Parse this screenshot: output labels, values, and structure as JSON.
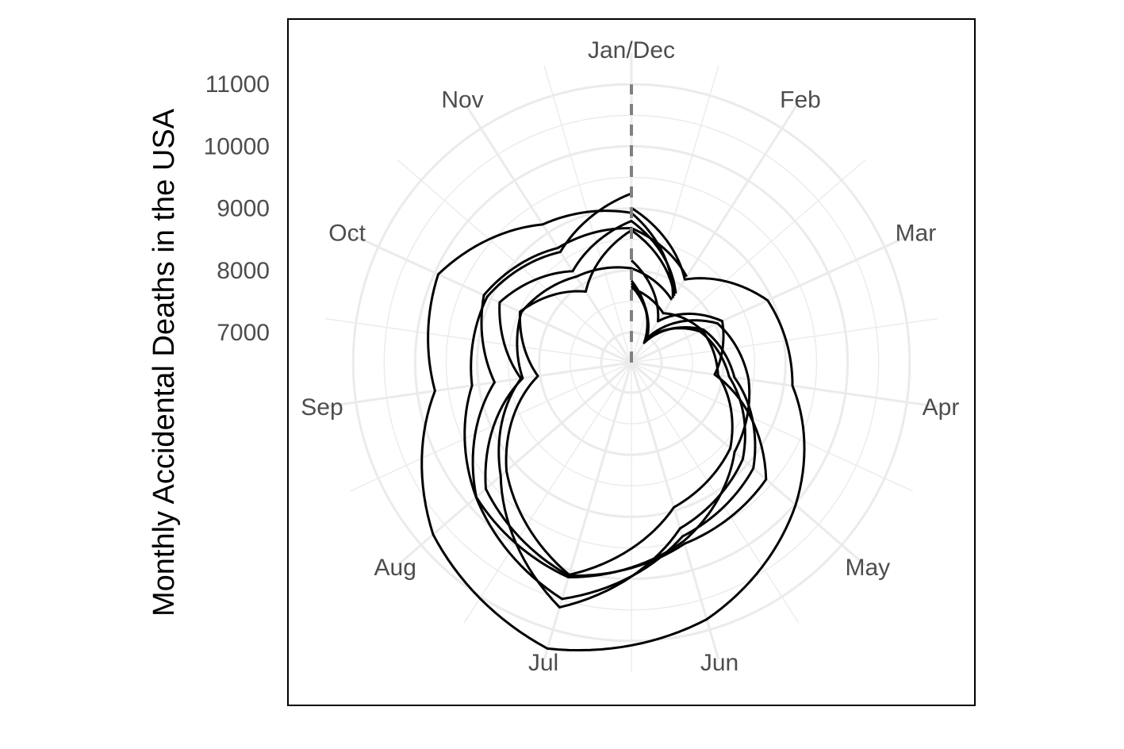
{
  "chart_data": {
    "type": "line",
    "coordinate_system": "polar",
    "title": "",
    "ylabel": "Monthly Accidental Deaths in the USA",
    "xlabel": "",
    "angular_labels": [
      "Jan/Dec",
      "Feb",
      "Mar",
      "Apr",
      "May",
      "Jun",
      "Jul",
      "Aug",
      "Sep",
      "Oct",
      "Nov"
    ],
    "radial_ticks": [
      7000,
      8000,
      9000,
      10000,
      11000
    ],
    "radial_range": [
      4900,
      11500
    ],
    "grid": true,
    "legend": "none",
    "series": [
      {
        "values": [
          9007,
          8106,
          8928,
          9137,
          10017,
          10826,
          11317,
          10744,
          9713,
          9938,
          9161,
          8927,
          7750
        ]
      },
      {
        "values": [
          7750,
          6981,
          8038,
          8422,
          8714,
          9512,
          10120,
          9823,
          8743,
          9129,
          8710,
          8680,
          8162
        ]
      },
      {
        "values": [
          8162,
          7306,
          8124,
          7870,
          9387,
          9556,
          10093,
          9620,
          8285,
          8466,
          8160,
          8034,
          7717
        ]
      },
      {
        "values": [
          7717,
          7461,
          7767,
          7925,
          8623,
          8945,
          10078,
          9179,
          8037,
          8488,
          7874,
          8647,
          7792
        ]
      },
      {
        "values": [
          7792,
          6957,
          7726,
          8106,
          8890,
          9299,
          10625,
          9302,
          8314,
          8850,
          8265,
          8796,
          7836
        ]
      },
      {
        "values": [
          7836,
          6892,
          7791,
          8192,
          9115,
          9434,
          10484,
          9827,
          9110,
          9070,
          8633,
          9240
        ]
      }
    ],
    "colors": {
      "line": "#000000",
      "grid": "#ebebeb",
      "panel_border": "#000000",
      "dashed_line": "#808080"
    }
  }
}
